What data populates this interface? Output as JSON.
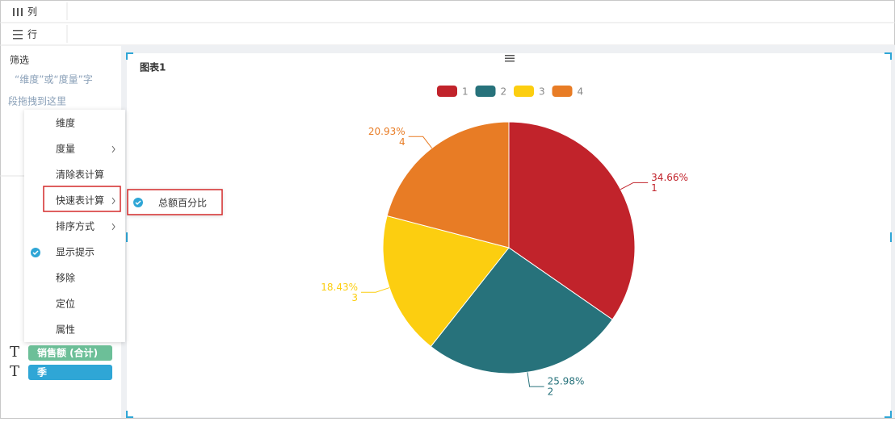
{
  "toolbar": {
    "columns": "列",
    "rows": "行"
  },
  "filter": {
    "title": "筛选",
    "hint_line1": "“维度”或“度量”字",
    "hint_line2": "段拖拽到这里"
  },
  "context_menu": {
    "items": [
      "维度",
      "度量",
      "清除表计算",
      "快速表计算",
      "排序方式",
      "显示提示",
      "移除",
      "定位",
      "属性"
    ],
    "submenu_item": "总额百分比"
  },
  "fields": [
    "销售额 (合计)",
    "季"
  ],
  "chart_data": {
    "type": "pie",
    "title": "图表1",
    "categories": [
      "1",
      "2",
      "3",
      "4"
    ],
    "values": [
      34.66,
      25.98,
      18.43,
      20.93
    ],
    "value_labels": [
      "34.66%",
      "25.98%",
      "18.43%",
      "20.93%"
    ],
    "colors": [
      "#c1232b",
      "#27727b",
      "#fcce10",
      "#e87c25"
    ]
  }
}
